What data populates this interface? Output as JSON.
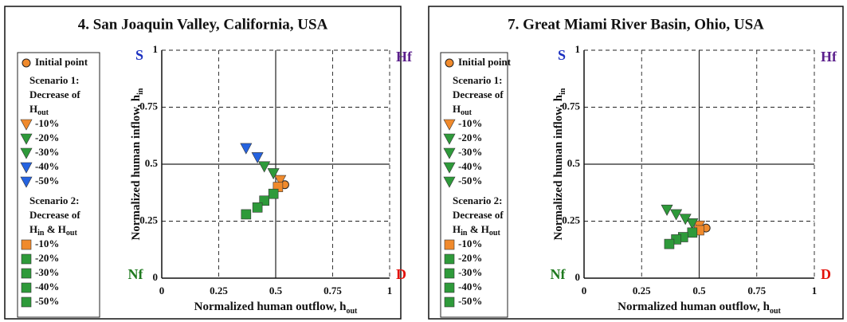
{
  "chart_data": [
    {
      "type": "scatter",
      "title": "4. San Joaquin Valley, California, USA",
      "xlabel": "Normalized human outflow, h",
      "xlabel_sub": "out",
      "ylabel": "Normalized human inflow, h",
      "ylabel_sub": "in",
      "xlim": [
        0,
        1
      ],
      "ylim": [
        0,
        1
      ],
      "xticks": [
        0,
        0.25,
        0.5,
        0.75,
        1
      ],
      "yticks": [
        0,
        0.25,
        0.5,
        0.75,
        1
      ],
      "grid": "dashed",
      "corners": [
        {
          "text": "S",
          "color": "#1a2fc0"
        },
        {
          "text": "Hf",
          "color": "#5b1f8c"
        },
        {
          "text": "Nf",
          "color": "#1f7a1f"
        },
        {
          "text": "D",
          "color": "#e3120b"
        }
      ],
      "legend_sections": [
        {
          "lines": [
            "Scenario 1:",
            "Decrease of"
          ],
          "formula": [
            [
              "H",
              "out"
            ]
          ]
        },
        {
          "lines": [
            "Scenario 2:",
            "Decrease of"
          ],
          "formula": [
            [
              "H",
              "in"
            ],
            [
              " & H",
              "out"
            ]
          ]
        }
      ],
      "series": [
        {
          "name": "Initial point",
          "marker": "circle",
          "color": "#f08a2c",
          "x": [
            0.54
          ],
          "values": [
            0.41
          ]
        },
        {
          "name": "-10%",
          "marker": "triangle",
          "color": "#f08a2c",
          "x": [
            0.52
          ],
          "values": [
            0.43
          ]
        },
        {
          "name": "-20%",
          "marker": "triangle",
          "color": "#2e9a3a",
          "x": [
            0.49
          ],
          "values": [
            0.46
          ]
        },
        {
          "name": "-30%",
          "marker": "triangle",
          "color": "#2e9a3a",
          "x": [
            0.45
          ],
          "values": [
            0.49
          ]
        },
        {
          "name": "-40%",
          "marker": "triangle",
          "color": "#2563e0",
          "x": [
            0.42
          ],
          "values": [
            0.53
          ]
        },
        {
          "name": "-50%",
          "marker": "triangle",
          "color": "#2563e0",
          "x": [
            0.37
          ],
          "values": [
            0.57
          ]
        },
        {
          "name": "-10%",
          "marker": "square",
          "color": "#f08a2c",
          "x": [
            0.51
          ],
          "values": [
            0.4
          ]
        },
        {
          "name": "-20%",
          "marker": "square",
          "color": "#2e9a3a",
          "x": [
            0.49
          ],
          "values": [
            0.37
          ]
        },
        {
          "name": "-30%",
          "marker": "square",
          "color": "#2e9a3a",
          "x": [
            0.45
          ],
          "values": [
            0.34
          ]
        },
        {
          "name": "-40%",
          "marker": "square",
          "color": "#2e9a3a",
          "x": [
            0.42
          ],
          "values": [
            0.31
          ]
        },
        {
          "name": "-50%",
          "marker": "square",
          "color": "#2e9a3a",
          "x": [
            0.37
          ],
          "values": [
            0.28
          ]
        }
      ]
    },
    {
      "type": "scatter",
      "title": "7. Great Miami River Basin, Ohio, USA",
      "xlabel": "Normalized human outflow, h",
      "xlabel_sub": "out",
      "ylabel": "Normalized human inflow, h",
      "ylabel_sub": "in",
      "xlim": [
        0,
        1
      ],
      "ylim": [
        0,
        1
      ],
      "xticks": [
        0,
        0.25,
        0.5,
        0.75,
        1
      ],
      "yticks": [
        0,
        0.25,
        0.5,
        0.75,
        1
      ],
      "grid": "dashed",
      "corners": [
        {
          "text": "S",
          "color": "#1a2fc0"
        },
        {
          "text": "Hf",
          "color": "#5b1f8c"
        },
        {
          "text": "Nf",
          "color": "#1f7a1f"
        },
        {
          "text": "D",
          "color": "#e3120b"
        }
      ],
      "legend_sections": [
        {
          "lines": [
            "Scenario 1:",
            "Decrease of"
          ],
          "formula": [
            [
              "H",
              "out"
            ]
          ]
        },
        {
          "lines": [
            "Scenario 2:",
            "Decrease of"
          ],
          "formula": [
            [
              "H",
              "in"
            ],
            [
              " & H",
              "out"
            ]
          ]
        }
      ],
      "series": [
        {
          "name": "Initial point",
          "marker": "circle",
          "color": "#f08a2c",
          "x": [
            0.53
          ],
          "values": [
            0.22
          ]
        },
        {
          "name": "-10%",
          "marker": "triangle",
          "color": "#f08a2c",
          "x": [
            0.5
          ],
          "values": [
            0.23
          ]
        },
        {
          "name": "-20%",
          "marker": "triangle",
          "color": "#2e9a3a",
          "x": [
            0.47
          ],
          "values": [
            0.24
          ]
        },
        {
          "name": "-30%",
          "marker": "triangle",
          "color": "#2e9a3a",
          "x": [
            0.44
          ],
          "values": [
            0.26
          ]
        },
        {
          "name": "-40%",
          "marker": "triangle",
          "color": "#2e9a3a",
          "x": [
            0.4
          ],
          "values": [
            0.28
          ]
        },
        {
          "name": "-50%",
          "marker": "triangle",
          "color": "#2e9a3a",
          "x": [
            0.36
          ],
          "values": [
            0.3
          ]
        },
        {
          "name": "-10%",
          "marker": "square",
          "color": "#f08a2c",
          "x": [
            0.5
          ],
          "values": [
            0.21
          ]
        },
        {
          "name": "-20%",
          "marker": "square",
          "color": "#2e9a3a",
          "x": [
            0.47
          ],
          "values": [
            0.2
          ]
        },
        {
          "name": "-30%",
          "marker": "square",
          "color": "#2e9a3a",
          "x": [
            0.43
          ],
          "values": [
            0.18
          ]
        },
        {
          "name": "-40%",
          "marker": "square",
          "color": "#2e9a3a",
          "x": [
            0.4
          ],
          "values": [
            0.17
          ]
        },
        {
          "name": "-50%",
          "marker": "square",
          "color": "#2e9a3a",
          "x": [
            0.37
          ],
          "values": [
            0.15
          ]
        }
      ]
    }
  ]
}
